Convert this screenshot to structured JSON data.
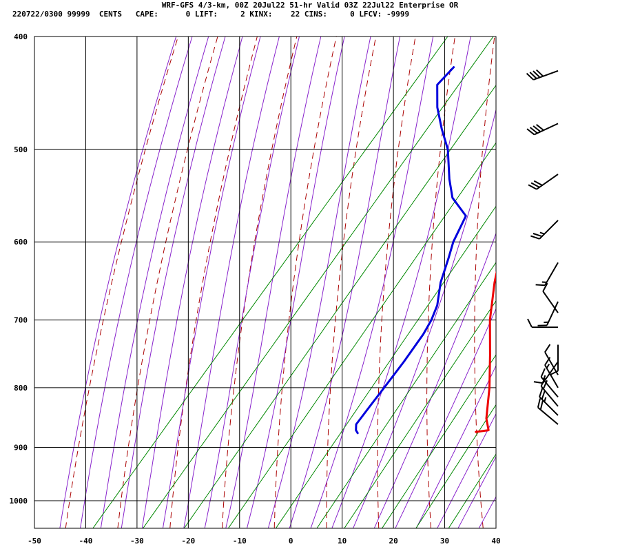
{
  "header": {
    "line1": "WRF-GFS 4/3-km, 00Z 20Jul22 51-hr Valid 03Z 22Jul22 Enterprise OR",
    "line2": "220722/0300 99999  CENTS   CAPE:      0 LIFT:     2 KINX:    22 CINS:     0 LFCV: -9999"
  },
  "chart_data": {
    "type": "line",
    "subtype": "skew-T log-P sounding",
    "title": "WRF-GFS 4/3-km, 00Z 20Jul22 51-hr Valid 03Z 22Jul22 Enterprise OR",
    "xlabel": "",
    "ylabel": "",
    "x_ticks": [
      -50,
      -40,
      -30,
      -20,
      -10,
      0,
      10,
      20,
      30,
      40
    ],
    "y_ticks": [
      400,
      500,
      600,
      700,
      800,
      900,
      1000
    ],
    "xlim": [
      -50,
      40
    ],
    "ylim": [
      1050,
      400
    ],
    "y_scale": "log",
    "grid": true,
    "colors": {
      "temperature": "#ee0000",
      "dewpoint": "#0000dd",
      "dry_adiabat": "#aa0000",
      "moist_adiabat": "#8822cc",
      "mixing_ratio": "#008800",
      "grid": "#000000",
      "barb": "#000000"
    },
    "series": [
      {
        "key": "temperature",
        "values": [
          {
            "p": 873,
            "t": 24.9
          },
          {
            "p": 870,
            "t": 27.1
          },
          {
            "p": 850,
            "t": 24.8
          },
          {
            "p": 800,
            "t": 20.5
          },
          {
            "p": 750,
            "t": 15.4
          },
          {
            "p": 700,
            "t": 9.8
          },
          {
            "p": 650,
            "t": 4.7
          },
          {
            "p": 600,
            "t": -0.1
          },
          {
            "p": 565,
            "t": -3.5
          },
          {
            "p": 530,
            "t": -6.5
          },
          {
            "p": 500,
            "t": -9.6
          },
          {
            "p": 470,
            "t": -12.7
          },
          {
            "p": 450,
            "t": -15.9
          },
          {
            "p": 425,
            "t": -18.9
          }
        ]
      },
      {
        "key": "dewpoint",
        "values": [
          {
            "p": 875,
            "t": 2.1
          },
          {
            "p": 870,
            "t": 1.3
          },
          {
            "p": 860,
            "t": 0.4
          },
          {
            "p": 830,
            "t": 0.2
          },
          {
            "p": 800,
            "t": 0.0
          },
          {
            "p": 760,
            "t": -0.3
          },
          {
            "p": 720,
            "t": -0.9
          },
          {
            "p": 700,
            "t": -1.6
          },
          {
            "p": 680,
            "t": -2.8
          },
          {
            "p": 650,
            "t": -5.8
          },
          {
            "p": 620,
            "t": -8.1
          },
          {
            "p": 600,
            "t": -9.8
          },
          {
            "p": 570,
            "t": -11.5
          },
          {
            "p": 550,
            "t": -17.0
          },
          {
            "p": 530,
            "t": -20.6
          },
          {
            "p": 500,
            "t": -25.6
          },
          {
            "p": 480,
            "t": -30.1
          },
          {
            "p": 460,
            "t": -34.4
          },
          {
            "p": 440,
            "t": -38.0
          },
          {
            "p": 425,
            "t": -37.6
          }
        ]
      }
    ],
    "wind_barbs": [
      {
        "p": 428,
        "dir": 250,
        "spd": 40
      },
      {
        "p": 475,
        "dir": 245,
        "spd": 40
      },
      {
        "p": 525,
        "dir": 235,
        "spd": 30
      },
      {
        "p": 575,
        "dir": 225,
        "spd": 25
      },
      {
        "p": 625,
        "dir": 210,
        "spd": 15
      },
      {
        "p": 675,
        "dir": 205,
        "spd": 15
      },
      {
        "p": 690,
        "dir": 325,
        "spd": 10
      },
      {
        "p": 710,
        "dir": 270,
        "spd": 10
      },
      {
        "p": 735,
        "dir": 180,
        "spd": 10
      },
      {
        "p": 760,
        "dir": 215,
        "spd": 10
      },
      {
        "p": 780,
        "dir": 330,
        "spd": 10
      },
      {
        "p": 800,
        "dir": 330,
        "spd": 15
      },
      {
        "p": 815,
        "dir": 320,
        "spd": 15
      },
      {
        "p": 830,
        "dir": 320,
        "spd": 20
      },
      {
        "p": 845,
        "dir": 315,
        "spd": 25
      },
      {
        "p": 860,
        "dir": 310,
        "spd": 20
      }
    ]
  }
}
